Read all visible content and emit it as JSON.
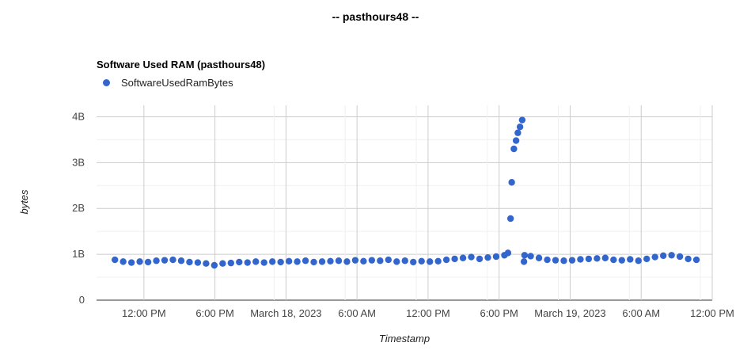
{
  "page": {
    "title": "-- pasthours48 --"
  },
  "chart_data": {
    "type": "scatter",
    "title": "Software Used RAM (pasthours48)",
    "xlabel": "Timestamp",
    "ylabel": "bytes",
    "legend_position": "top-left",
    "series": [
      {
        "name": "SoftwareUsedRamBytes",
        "color": "#3366cc",
        "x": [
          "2023-03-17 09:33",
          "2023-03-17 10:15",
          "2023-03-17 10:57",
          "2023-03-17 11:39",
          "2023-03-17 12:21",
          "2023-03-17 13:03",
          "2023-03-17 13:45",
          "2023-03-17 14:27",
          "2023-03-17 15:09",
          "2023-03-17 15:51",
          "2023-03-17 16:33",
          "2023-03-17 17:15",
          "2023-03-17 17:57",
          "2023-03-17 18:39",
          "2023-03-17 19:21",
          "2023-03-17 20:03",
          "2023-03-17 20:45",
          "2023-03-17 21:27",
          "2023-03-17 22:09",
          "2023-03-17 22:51",
          "2023-03-17 23:33",
          "2023-03-18 00:15",
          "2023-03-18 00:57",
          "2023-03-18 01:39",
          "2023-03-18 02:21",
          "2023-03-18 03:03",
          "2023-03-18 03:45",
          "2023-03-18 04:27",
          "2023-03-18 05:09",
          "2023-03-18 05:51",
          "2023-03-18 06:33",
          "2023-03-18 07:15",
          "2023-03-18 07:57",
          "2023-03-18 08:39",
          "2023-03-18 09:21",
          "2023-03-18 10:03",
          "2023-03-18 10:45",
          "2023-03-18 11:27",
          "2023-03-18 12:09",
          "2023-03-18 12:51",
          "2023-03-18 13:33",
          "2023-03-18 14:15",
          "2023-03-18 14:57",
          "2023-03-18 15:39",
          "2023-03-18 16:21",
          "2023-03-18 17:03",
          "2023-03-18 17:45",
          "2023-03-18 18:27",
          "2023-03-18 18:45",
          "2023-03-18 18:58",
          "2023-03-18 19:04",
          "2023-03-18 19:15",
          "2023-03-18 19:26",
          "2023-03-18 19:35",
          "2023-03-18 19:46",
          "2023-03-18 19:57",
          "2023-03-18 20:06",
          "2023-03-18 20:09",
          "2023-03-18 20:40",
          "2023-03-18 21:22",
          "2023-03-18 22:04",
          "2023-03-18 22:46",
          "2023-03-18 23:28",
          "2023-03-19 00:10",
          "2023-03-19 00:52",
          "2023-03-19 01:34",
          "2023-03-19 02:16",
          "2023-03-19 02:58",
          "2023-03-19 03:40",
          "2023-03-19 04:22",
          "2023-03-19 05:04",
          "2023-03-19 05:46",
          "2023-03-19 06:28",
          "2023-03-19 07:10",
          "2023-03-19 07:52",
          "2023-03-19 08:34",
          "2023-03-19 09:16",
          "2023-03-19 09:58",
          "2023-03-19 10:40"
        ],
        "y": [
          0.88,
          0.84,
          0.82,
          0.84,
          0.83,
          0.86,
          0.87,
          0.88,
          0.86,
          0.83,
          0.82,
          0.8,
          0.76,
          0.8,
          0.81,
          0.83,
          0.82,
          0.84,
          0.82,
          0.84,
          0.83,
          0.85,
          0.84,
          0.86,
          0.83,
          0.84,
          0.85,
          0.86,
          0.84,
          0.87,
          0.85,
          0.87,
          0.86,
          0.88,
          0.84,
          0.86,
          0.83,
          0.85,
          0.84,
          0.85,
          0.88,
          0.9,
          0.92,
          0.94,
          0.9,
          0.93,
          0.95,
          0.98,
          1.03,
          1.78,
          2.57,
          3.3,
          3.48,
          3.65,
          3.78,
          3.93,
          0.84,
          0.98,
          0.96,
          0.92,
          0.88,
          0.87,
          0.86,
          0.87,
          0.89,
          0.9,
          0.91,
          0.92,
          0.88,
          0.87,
          0.89,
          0.86,
          0.9,
          0.94,
          0.97,
          0.98,
          0.95,
          0.9,
          0.88
        ]
      }
    ],
    "y_ticks": [
      "0",
      "1B",
      "2B",
      "3B",
      "4B"
    ],
    "x_ticks": [
      "12:00 PM",
      "6:00 PM",
      "March 18, 2023",
      "6:00 AM",
      "12:00 PM",
      "6:00 PM",
      "March 19, 2023",
      "6:00 AM",
      "12:00 PM"
    ],
    "y_unit": 1000000000,
    "ylim": [
      0,
      4.25
    ],
    "xlim": [
      "2023-03-17 08:00",
      "2023-03-19 12:00"
    ],
    "x_tick_times": [
      "2023-03-17 12:00",
      "2023-03-17 18:00",
      "2023-03-18 00:00",
      "2023-03-18 06:00",
      "2023-03-18 12:00",
      "2023-03-18 18:00",
      "2023-03-19 00:00",
      "2023-03-19 06:00",
      "2023-03-19 12:00"
    ],
    "grid": true
  }
}
